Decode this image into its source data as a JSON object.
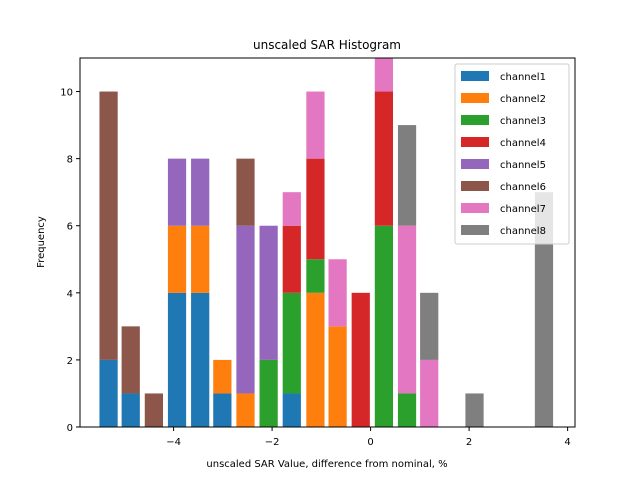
{
  "chart_data": {
    "type": "bar",
    "stacked": true,
    "title": "unscaled SAR Histogram",
    "xlabel": "unscaled SAR Value, difference from nominal, %",
    "ylabel": "Frequency",
    "xlim": [
      -5.9,
      4.15
    ],
    "ylim": [
      0,
      11
    ],
    "xticks": [
      -4,
      -2,
      0,
      2,
      4
    ],
    "xtick_labels": [
      "−4",
      "−2",
      "0",
      "2",
      "4"
    ],
    "yticks": [
      0,
      2,
      4,
      6,
      8,
      10
    ],
    "ytick_labels": [
      "0",
      "2",
      "4",
      "6",
      "8",
      "10"
    ],
    "bar_width": 0.37,
    "x": [
      -5.32,
      -4.87,
      -4.4,
      -3.93,
      -3.46,
      -3.01,
      -2.54,
      -2.07,
      -1.6,
      -1.12,
      -0.67,
      -0.2,
      0.27,
      0.74,
      1.19,
      2.11,
      3.52
    ],
    "legend_position": "top-right",
    "grid": false,
    "series": [
      {
        "name": "channel1",
        "color": "#1f77b4",
        "values": [
          2,
          1,
          0,
          4,
          4,
          1,
          0,
          0,
          1,
          0,
          0,
          0,
          0,
          0,
          0,
          0,
          0
        ]
      },
      {
        "name": "channel2",
        "color": "#ff7f0e",
        "values": [
          0,
          0,
          0,
          2,
          2,
          1,
          1,
          0,
          0,
          4,
          3,
          0,
          0,
          0,
          0,
          0,
          0
        ]
      },
      {
        "name": "channel3",
        "color": "#2ca02c",
        "values": [
          0,
          0,
          0,
          0,
          0,
          0,
          0,
          2,
          3,
          1,
          0,
          0,
          6,
          1,
          0,
          0,
          0
        ]
      },
      {
        "name": "channel4",
        "color": "#d62728",
        "values": [
          0,
          0,
          0,
          0,
          0,
          0,
          0,
          0,
          2,
          3,
          0,
          4,
          4,
          0,
          0,
          0,
          0
        ]
      },
      {
        "name": "channel5",
        "color": "#9467bd",
        "values": [
          0,
          0,
          0,
          2,
          2,
          0,
          5,
          4,
          0,
          0,
          0,
          0,
          0,
          0,
          0,
          0,
          0
        ]
      },
      {
        "name": "channel6",
        "color": "#8c564b",
        "values": [
          8,
          2,
          1,
          0,
          0,
          0,
          2,
          0,
          0,
          0,
          0,
          0,
          0,
          0,
          0,
          0,
          0
        ]
      },
      {
        "name": "channel7",
        "color": "#e377c2",
        "values": [
          0,
          0,
          0,
          0,
          0,
          0,
          0,
          0,
          1,
          2,
          2,
          0,
          1,
          5,
          2,
          0,
          0
        ]
      },
      {
        "name": "channel8",
        "color": "#7f7f7f",
        "values": [
          0,
          0,
          0,
          0,
          0,
          0,
          0,
          0,
          0,
          0,
          0,
          0,
          0,
          3,
          2,
          1,
          7
        ]
      }
    ]
  }
}
